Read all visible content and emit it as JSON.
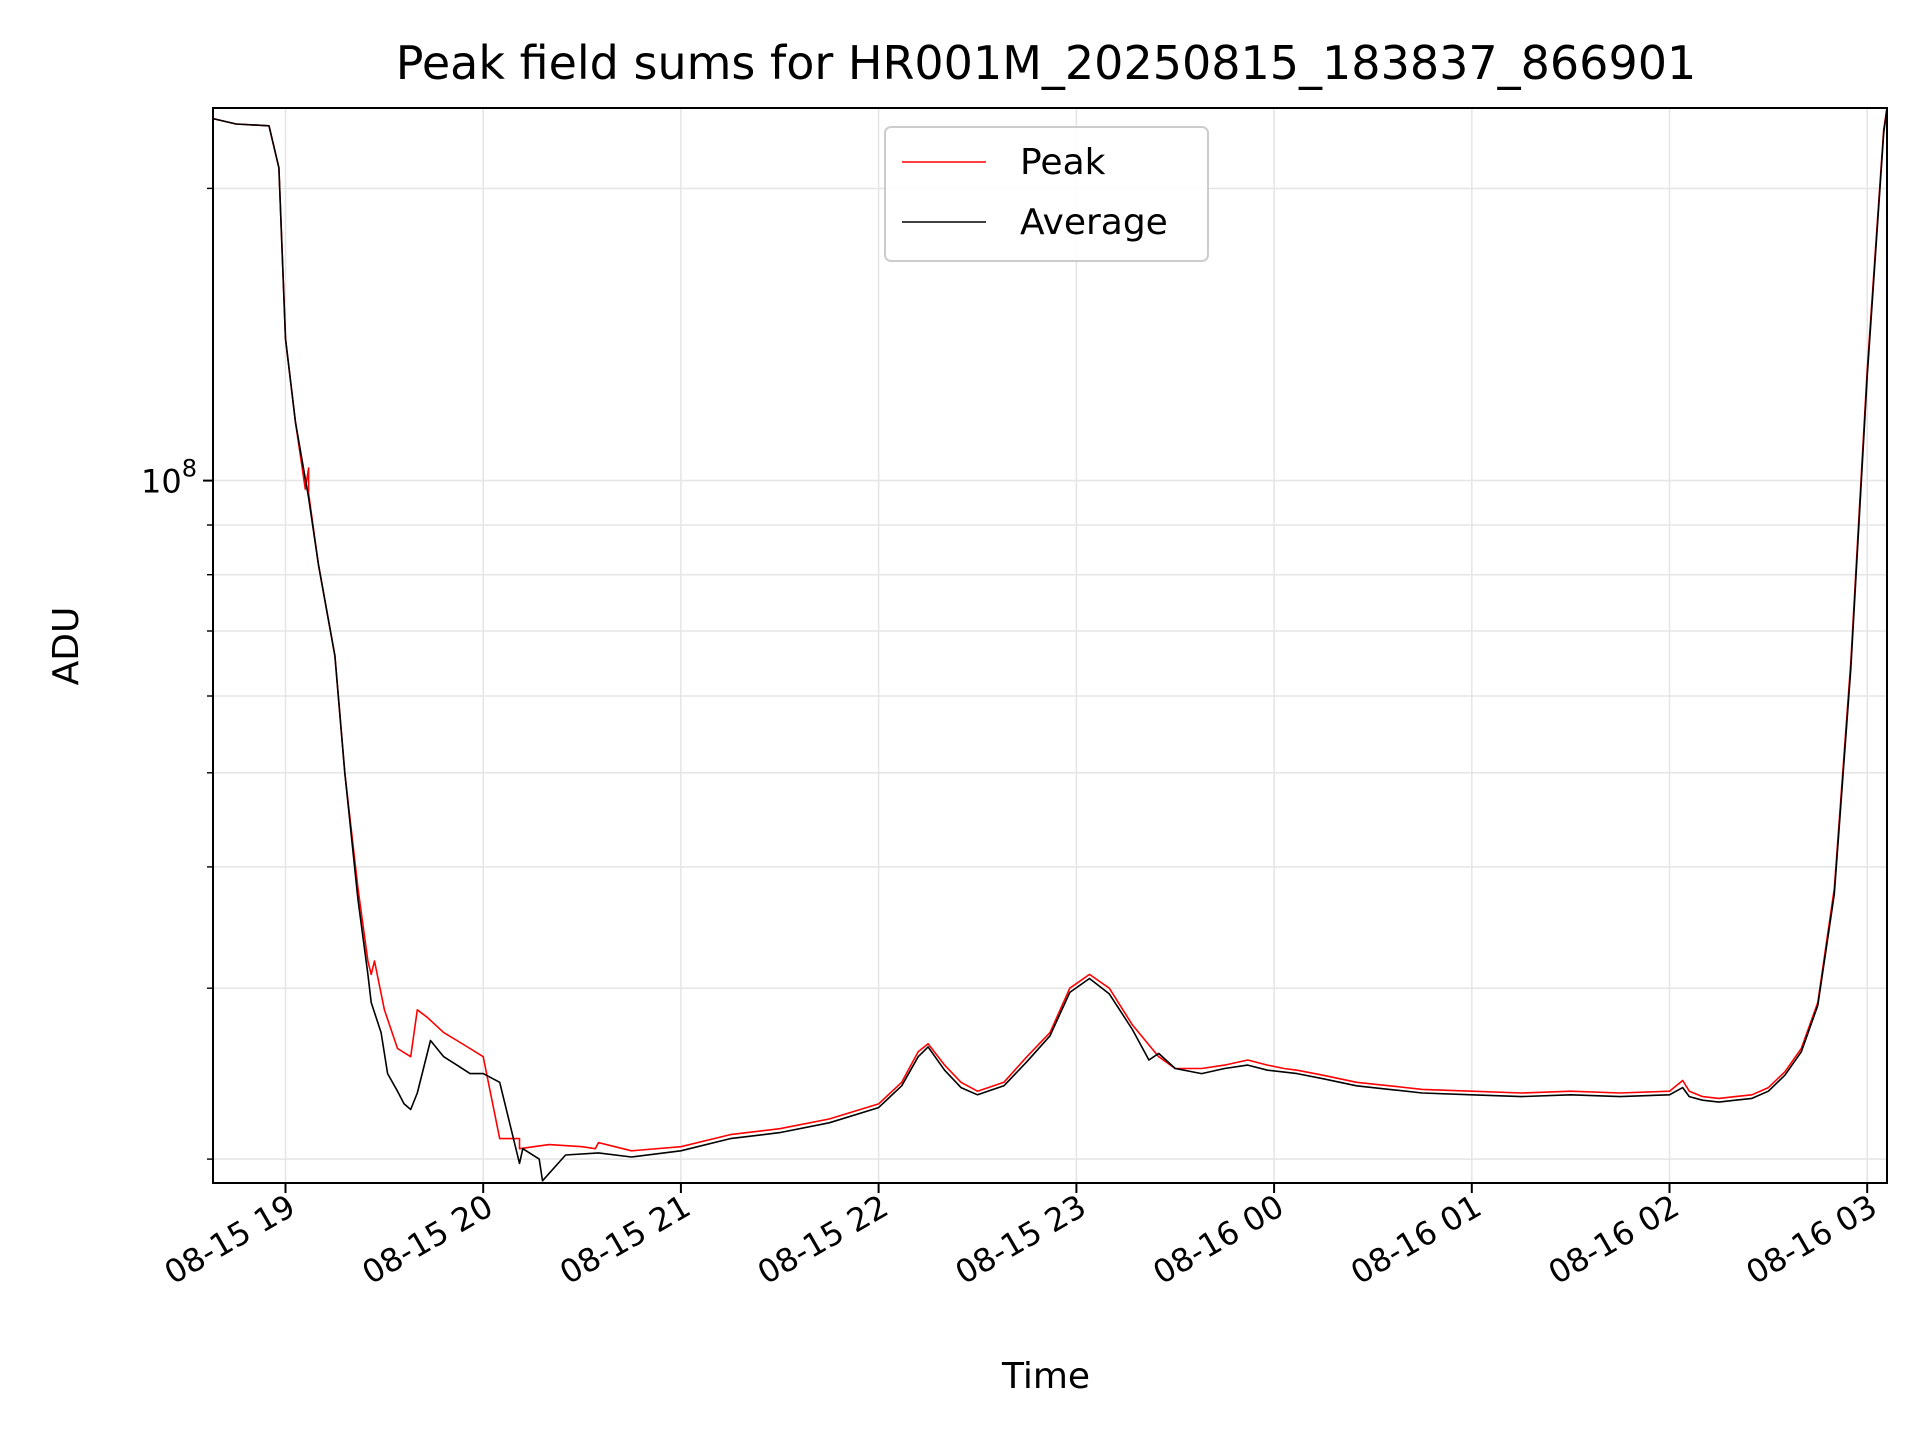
{
  "chart_data": {
    "type": "line",
    "title": "Peak field sums for HR001M_20250815_183837_866901",
    "xlabel": "Time",
    "ylabel": "ADU",
    "y_scale": "log",
    "ylim": [
      18900000,
      242000000
    ],
    "xlim": [
      "2025-08-15 18:38",
      "2025-08-16 03:06"
    ],
    "grid": true,
    "legend_position": "top-center",
    "x_tick_labels": [
      "08-15 19",
      "08-15 20",
      "08-15 21",
      "08-15 22",
      "08-15 23",
      "08-16 00",
      "08-16 01",
      "08-16 02",
      "08-16 03"
    ],
    "x_ticks": [
      "2025-08-15 19:00",
      "2025-08-15 20:00",
      "2025-08-15 21:00",
      "2025-08-15 22:00",
      "2025-08-15 23:00",
      "2025-08-16 00:00",
      "2025-08-16 01:00",
      "2025-08-16 02:00",
      "2025-08-16 03:00"
    ],
    "y_tick_base": "10",
    "y_tick_exponent": "8",
    "y_major_tick": 100000000,
    "y_minor_ticks": [
      20000000,
      30000000,
      40000000,
      50000000,
      60000000,
      70000000,
      80000000,
      90000000,
      200000000
    ],
    "colors": {
      "Peak": "#ff0000",
      "Average": "#000000"
    },
    "series": [
      {
        "name": "Peak",
        "color": "#ff0000",
        "x": [
          "2025-08-15 18:38",
          "2025-08-15 18:45",
          "2025-08-15 18:55",
          "2025-08-15 18:58",
          "2025-08-15 19:00",
          "2025-08-15 19:03",
          "2025-08-15 19:06",
          "2025-08-15 19:07",
          "2025-08-15 19:07",
          "2025-08-15 19:10",
          "2025-08-15 19:15",
          "2025-08-15 19:18",
          "2025-08-15 19:22",
          "2025-08-15 19:25",
          "2025-08-15 19:26",
          "2025-08-15 19:27",
          "2025-08-15 19:30",
          "2025-08-15 19:34",
          "2025-08-15 19:38",
          "2025-08-15 19:40",
          "2025-08-15 19:43",
          "2025-08-15 19:48",
          "2025-08-15 19:52",
          "2025-08-15 19:56",
          "2025-08-15 20:00",
          "2025-08-15 20:05",
          "2025-08-15 20:11",
          "2025-08-15 20:11",
          "2025-08-15 20:20",
          "2025-08-15 20:30",
          "2025-08-15 20:34",
          "2025-08-15 20:35",
          "2025-08-15 20:45",
          "2025-08-15 21:00",
          "2025-08-15 21:15",
          "2025-08-15 21:30",
          "2025-08-15 21:45",
          "2025-08-15 22:00",
          "2025-08-15 22:07",
          "2025-08-15 22:12",
          "2025-08-15 22:15",
          "2025-08-15 22:20",
          "2025-08-15 22:25",
          "2025-08-15 22:30",
          "2025-08-15 22:38",
          "2025-08-15 22:45",
          "2025-08-15 22:52",
          "2025-08-15 22:58",
          "2025-08-15 23:04",
          "2025-08-15 23:10",
          "2025-08-15 23:17",
          "2025-08-15 23:25",
          "2025-08-15 23:30",
          "2025-08-15 23:38",
          "2025-08-15 23:45",
          "2025-08-15 23:52",
          "2025-08-15 23:58",
          "2025-08-16 00:03",
          "2025-08-16 00:07",
          "2025-08-16 00:15",
          "2025-08-16 00:25",
          "2025-08-16 00:35",
          "2025-08-16 00:45",
          "2025-08-16 01:00",
          "2025-08-16 01:15",
          "2025-08-16 01:30",
          "2025-08-16 01:45",
          "2025-08-16 02:00",
          "2025-08-16 02:04",
          "2025-08-16 02:06",
          "2025-08-16 02:10",
          "2025-08-16 02:15",
          "2025-08-16 02:20",
          "2025-08-16 02:25",
          "2025-08-16 02:30",
          "2025-08-16 02:35",
          "2025-08-16 02:40",
          "2025-08-16 02:45",
          "2025-08-16 02:50",
          "2025-08-16 02:55",
          "2025-08-16 03:00",
          "2025-08-16 03:05",
          "2025-08-16 03:06"
        ],
        "y": [
          236000000,
          233000000,
          232000000,
          210000000,
          140000000,
          115000000,
          98000000,
          103000000,
          97000000,
          82000000,
          66000000,
          50000000,
          38000000,
          32000000,
          31000000,
          32000000,
          28500000,
          26000000,
          25500000,
          28500000,
          28000000,
          27000000,
          26500000,
          26000000,
          25500000,
          21000000,
          21000000,
          20500000,
          20700000,
          20600000,
          20500000,
          20800000,
          20400000,
          20600000,
          21200000,
          21500000,
          22000000,
          22800000,
          24000000,
          25800000,
          26300000,
          25000000,
          24000000,
          23500000,
          24000000,
          25500000,
          27000000,
          30000000,
          31000000,
          30000000,
          27500000,
          25500000,
          24800000,
          24800000,
          25000000,
          25300000,
          25000000,
          24800000,
          24700000,
          24400000,
          24000000,
          23800000,
          23600000,
          23500000,
          23400000,
          23500000,
          23400000,
          23500000,
          24100000,
          23500000,
          23200000,
          23100000,
          23200000,
          23300000,
          23700000,
          24600000,
          26000000,
          29000000,
          38000000,
          65000000,
          130000000,
          230000000,
          242000000
        ]
      },
      {
        "name": "Average",
        "color": "#000000",
        "x": [
          "2025-08-15 18:38",
          "2025-08-15 18:45",
          "2025-08-15 18:55",
          "2025-08-15 18:58",
          "2025-08-15 19:00",
          "2025-08-15 19:03",
          "2025-08-15 19:07",
          "2025-08-15 19:10",
          "2025-08-15 19:15",
          "2025-08-15 19:18",
          "2025-08-15 19:22",
          "2025-08-15 19:25",
          "2025-08-15 19:26",
          "2025-08-15 19:29",
          "2025-08-15 19:31",
          "2025-08-15 19:34",
          "2025-08-15 19:36",
          "2025-08-15 19:38",
          "2025-08-15 19:40",
          "2025-08-15 19:44",
          "2025-08-15 19:48",
          "2025-08-15 19:52",
          "2025-08-15 19:56",
          "2025-08-15 20:00",
          "2025-08-15 20:05",
          "2025-08-15 20:11",
          "2025-08-15 20:12",
          "2025-08-15 20:17",
          "2025-08-15 20:18",
          "2025-08-15 20:25",
          "2025-08-15 20:35",
          "2025-08-15 20:45",
          "2025-08-15 21:00",
          "2025-08-15 21:15",
          "2025-08-15 21:30",
          "2025-08-15 21:45",
          "2025-08-15 22:00",
          "2025-08-15 22:07",
          "2025-08-15 22:12",
          "2025-08-15 22:15",
          "2025-08-15 22:20",
          "2025-08-15 22:25",
          "2025-08-15 22:30",
          "2025-08-15 22:38",
          "2025-08-15 22:45",
          "2025-08-15 22:52",
          "2025-08-15 22:58",
          "2025-08-15 23:04",
          "2025-08-15 23:10",
          "2025-08-15 23:17",
          "2025-08-15 23:22",
          "2025-08-15 23:25",
          "2025-08-15 23:30",
          "2025-08-15 23:38",
          "2025-08-15 23:45",
          "2025-08-15 23:52",
          "2025-08-15 23:58",
          "2025-08-16 00:07",
          "2025-08-16 00:15",
          "2025-08-16 00:25",
          "2025-08-16 00:35",
          "2025-08-16 00:45",
          "2025-08-16 01:00",
          "2025-08-16 01:15",
          "2025-08-16 01:30",
          "2025-08-16 01:45",
          "2025-08-16 02:00",
          "2025-08-16 02:04",
          "2025-08-16 02:06",
          "2025-08-16 02:10",
          "2025-08-16 02:15",
          "2025-08-16 02:20",
          "2025-08-16 02:25",
          "2025-08-16 02:30",
          "2025-08-16 02:35",
          "2025-08-16 02:40",
          "2025-08-16 02:45",
          "2025-08-16 02:50",
          "2025-08-16 02:55",
          "2025-08-16 03:00",
          "2025-08-16 03:05",
          "2025-08-16 03:06"
        ],
        "y": [
          236000000,
          233000000,
          232000000,
          210000000,
          140000000,
          115000000,
          96000000,
          82000000,
          66000000,
          50000000,
          37000000,
          31000000,
          29000000,
          27000000,
          24500000,
          23500000,
          22800000,
          22500000,
          23400000,
          26500000,
          25500000,
          25000000,
          24500000,
          24500000,
          24000000,
          19800000,
          20500000,
          20000000,
          19000000,
          20200000,
          20300000,
          20100000,
          20400000,
          21000000,
          21300000,
          21800000,
          22600000,
          23800000,
          25500000,
          26100000,
          24700000,
          23700000,
          23300000,
          23800000,
          25200000,
          26800000,
          29700000,
          30700000,
          29600000,
          27200000,
          25300000,
          25700000,
          24800000,
          24500000,
          24800000,
          25000000,
          24700000,
          24500000,
          24200000,
          23800000,
          23600000,
          23400000,
          23300000,
          23200000,
          23300000,
          23200000,
          23300000,
          23700000,
          23200000,
          23000000,
          22900000,
          23000000,
          23100000,
          23500000,
          24400000,
          25800000,
          28800000,
          37500000,
          64000000,
          128000000,
          228000000,
          242000000
        ]
      }
    ]
  }
}
